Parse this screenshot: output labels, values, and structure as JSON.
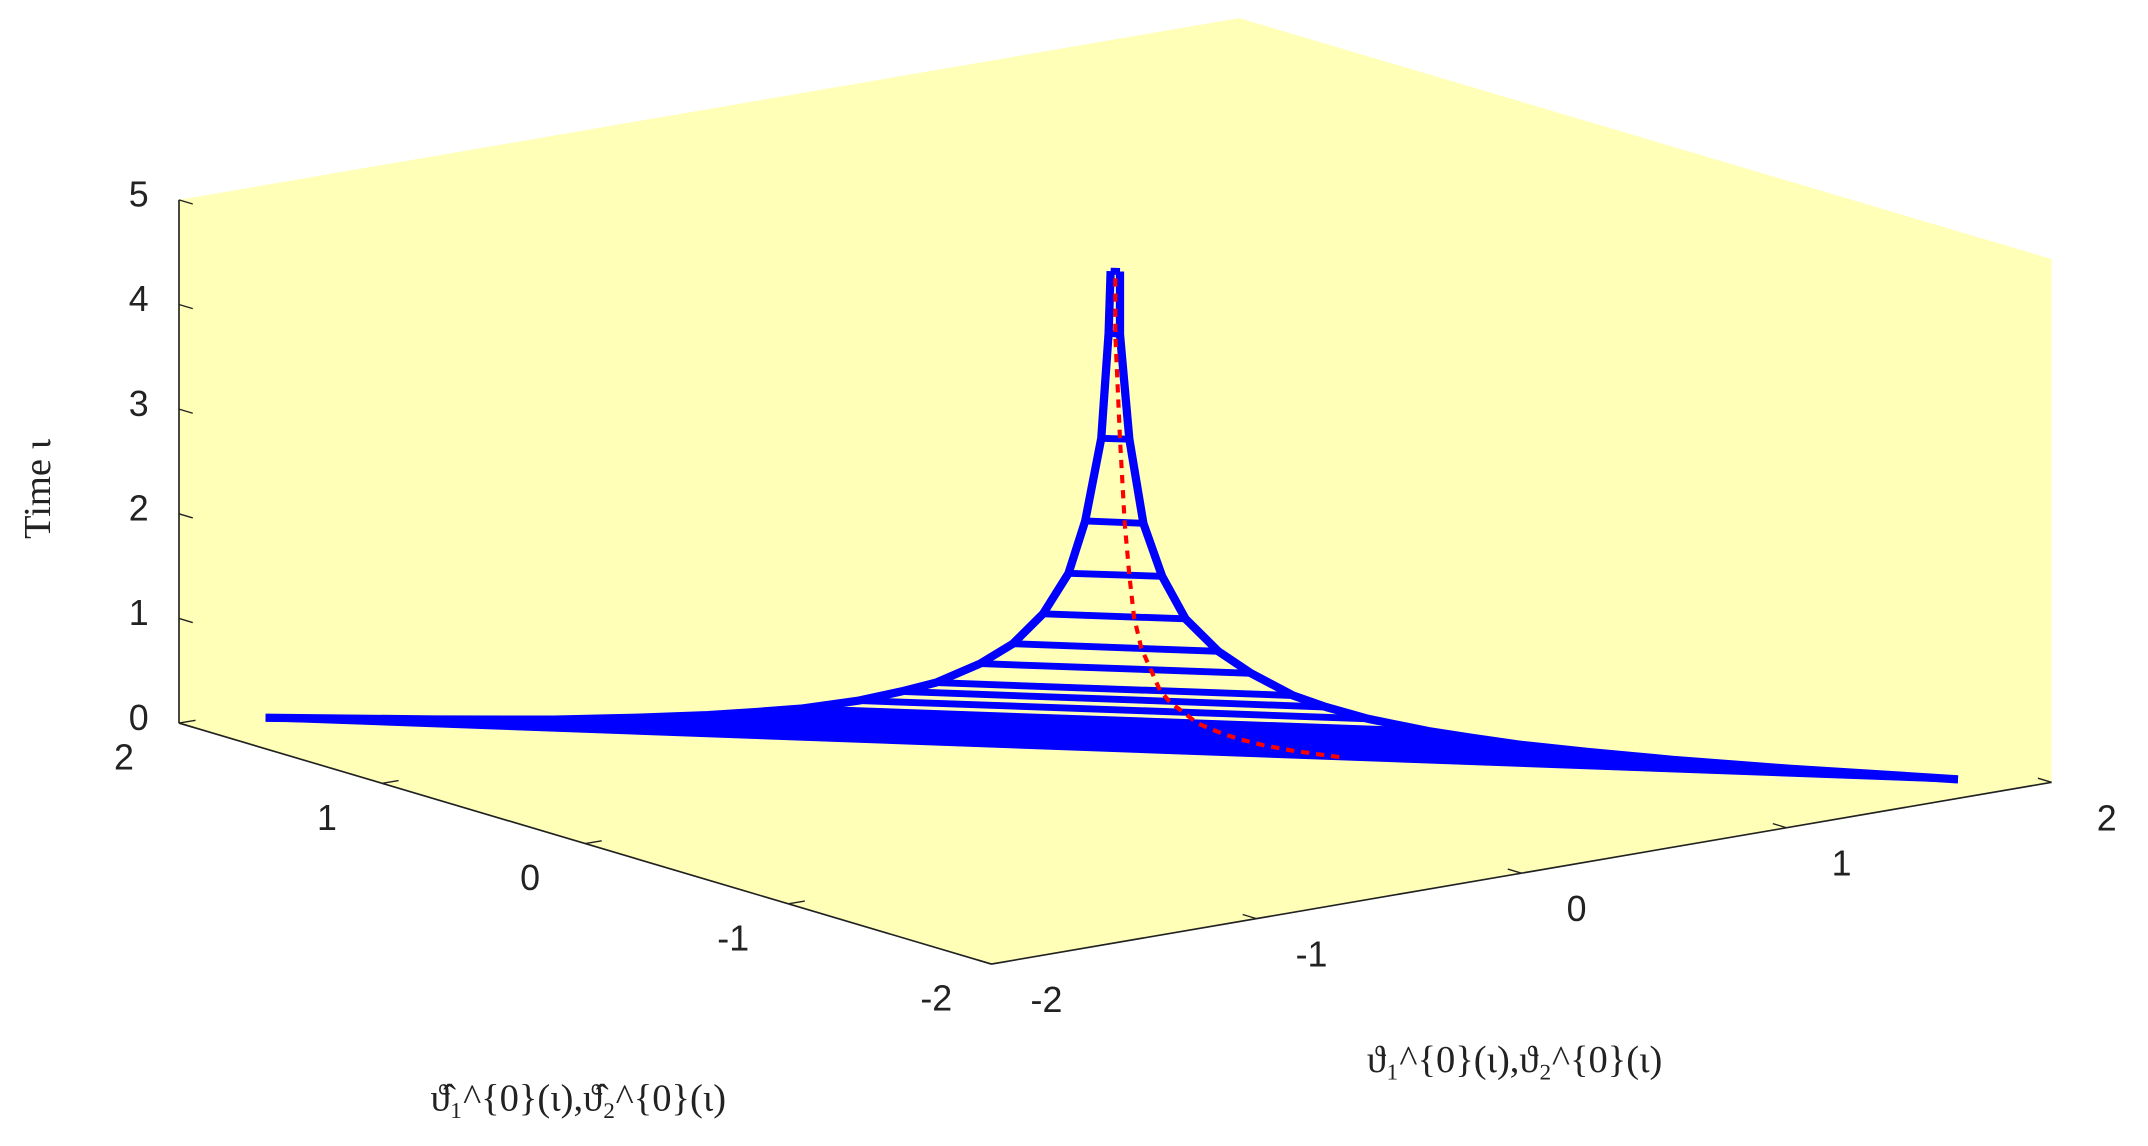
{
  "chart_data": {
    "type": "line3d",
    "xlabel": "ϑ₁^{0}(ι),ϑ₂^{0}(ι)",
    "ylabel": "ϑ̂₁^{0}(ι),ϑ̂₂^{0}(ι)",
    "zlabel": "Time ι",
    "xlim": [
      -2,
      2
    ],
    "ylim": [
      -2,
      2
    ],
    "zlim": [
      0,
      5
    ],
    "xticks": [
      -2,
      -1,
      0,
      1,
      2
    ],
    "yticks": [
      -2,
      -1,
      0,
      1,
      2
    ],
    "zticks": [
      0,
      1,
      2,
      3,
      4,
      5
    ],
    "background": "#ffffb8",
    "z": [
      0,
      0.05,
      0.1,
      0.15,
      0.2,
      0.25,
      0.3,
      0.4,
      0.5,
      0.6,
      0.8,
      1,
      1.3,
      1.7,
      2.2,
      3,
      4,
      4.6
    ],
    "series": [
      {
        "color": "#0000ff",
        "style": "solid",
        "x": [
          -1.75,
          -1.4,
          -1.16,
          -0.98,
          -0.84,
          -0.74,
          -0.65,
          -0.53,
          -0.44,
          -0.37,
          -0.28,
          -0.21,
          -0.15,
          -0.1,
          -0.06,
          -0.03,
          -0.01,
          -0.01
        ],
        "y": [
          1.9,
          1.52,
          1.25,
          1.06,
          0.91,
          0.8,
          0.7,
          0.57,
          0.48,
          0.4,
          0.3,
          0.23,
          0.16,
          0.1,
          0.07,
          0.03,
          0.02,
          0.01
        ]
      },
      {
        "color": "#0000ff",
        "style": "solid",
        "x": [
          1.8,
          1.44,
          1.19,
          1.01,
          0.86,
          0.76,
          0.67,
          0.54,
          0.45,
          0.38,
          0.29,
          0.22,
          0.15,
          0.1,
          0.06,
          0.03,
          0.01,
          0.01
        ],
        "y": [
          -1.8,
          -1.44,
          -1.19,
          -1.01,
          -0.86,
          -0.76,
          -0.67,
          -0.54,
          -0.45,
          -0.38,
          -0.29,
          -0.22,
          -0.15,
          -0.1,
          -0.06,
          -0.03,
          -0.01,
          -0.01
        ]
      },
      {
        "color": "#ff0000",
        "style": "dashed",
        "x": [
          0.5,
          0.4,
          0.33,
          0.28,
          0.24,
          0.21,
          0.18,
          0.15,
          0.12,
          0.1,
          0.08,
          0.06,
          0.04,
          0.03,
          0.02,
          0.01,
          0,
          0
        ],
        "y": [
          -0.45,
          -0.36,
          -0.3,
          -0.25,
          -0.22,
          -0.19,
          -0.17,
          -0.14,
          -0.11,
          -0.09,
          -0.07,
          -0.05,
          -0.04,
          -0.03,
          -0.02,
          -0.01,
          0,
          0
        ]
      }
    ]
  }
}
